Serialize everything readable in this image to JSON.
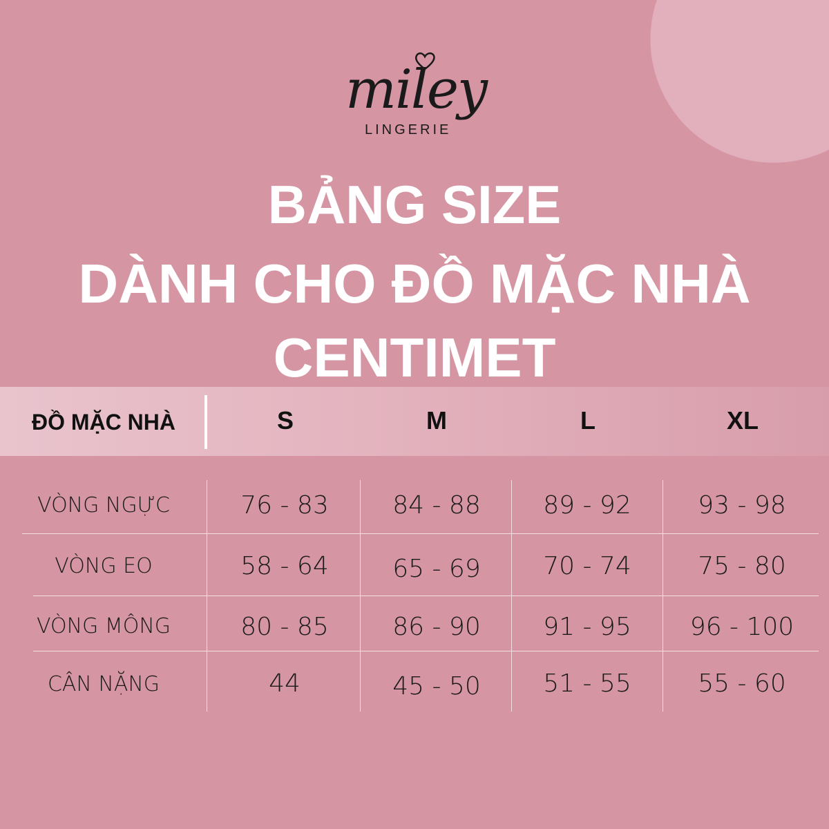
{
  "brand": {
    "name": "miley",
    "subtitle": "LINGERIE"
  },
  "colors": {
    "background": "#d595a3",
    "header_band": "#e3b3be",
    "circle": "#e2b0bc",
    "title": "#ffffff"
  },
  "title": {
    "line1": "BẢNG SIZE",
    "line2": "DÀNH CHO ĐỒ MẶC NHÀ",
    "line3": "CENTIMET"
  },
  "table": {
    "header_label": "ĐỒ MẶC NHÀ",
    "sizes": [
      "S",
      "M",
      "L",
      "XL"
    ],
    "rows": [
      {
        "label": "VÒNG NGỰC",
        "values": [
          "76 - 83",
          "84 - 88",
          "89 - 92",
          "93 - 98"
        ]
      },
      {
        "label": "VÒNG EO",
        "values": [
          "58 - 64",
          "65 - 69",
          "70 - 74",
          "75 - 80"
        ]
      },
      {
        "label": "VÒNG MÔNG",
        "values": [
          "80 - 85",
          "86 - 90",
          "91 - 95",
          "96 - 100"
        ]
      },
      {
        "label": "CÂN NẶNG",
        "values": [
          "44",
          "45 - 50",
          "51 - 55",
          "55 - 60"
        ]
      }
    ]
  }
}
